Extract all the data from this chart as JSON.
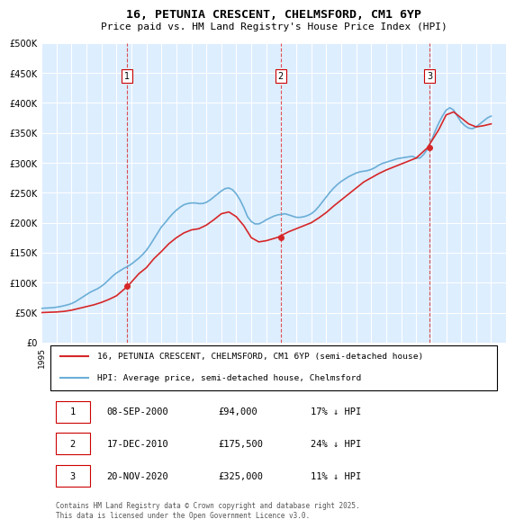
{
  "title": "16, PETUNIA CRESCENT, CHELMSFORD, CM1 6YP",
  "subtitle": "Price paid vs. HM Land Registry's House Price Index (HPI)",
  "ylim": [
    0,
    500000
  ],
  "yticks": [
    0,
    50000,
    100000,
    150000,
    200000,
    250000,
    300000,
    350000,
    400000,
    450000,
    500000
  ],
  "ylabel_format": "£{0}K",
  "xlim_start": 1995,
  "xlim_end": 2026,
  "hpi_color": "#6baed6",
  "price_color": "#d62728",
  "vline_color": "#d62728",
  "background_color": "#ddeeff",
  "sale_dates": [
    "2000-09-08",
    "2010-12-17",
    "2020-11-20"
  ],
  "sale_prices": [
    94000,
    175500,
    325000
  ],
  "sale_labels": [
    "1",
    "2",
    "3"
  ],
  "legend_entries": [
    "16, PETUNIA CRESCENT, CHELMSFORD, CM1 6YP (semi-detached house)",
    "HPI: Average price, semi-detached house, Chelmsford"
  ],
  "table_rows": [
    [
      "1",
      "08-SEP-2000",
      "£94,000",
      "17% ↓ HPI"
    ],
    [
      "2",
      "17-DEC-2010",
      "£175,500",
      "24% ↓ HPI"
    ],
    [
      "3",
      "20-NOV-2020",
      "£325,000",
      "11% ↓ HPI"
    ]
  ],
  "footnote": "Contains HM Land Registry data © Crown copyright and database right 2025.\nThis data is licensed under the Open Government Licence v3.0.",
  "hpi_data_x": [
    1995.0,
    1995.25,
    1995.5,
    1995.75,
    1996.0,
    1996.25,
    1996.5,
    1996.75,
    1997.0,
    1997.25,
    1997.5,
    1997.75,
    1998.0,
    1998.25,
    1998.5,
    1998.75,
    1999.0,
    1999.25,
    1999.5,
    1999.75,
    2000.0,
    2000.25,
    2000.5,
    2000.75,
    2001.0,
    2001.25,
    2001.5,
    2001.75,
    2002.0,
    2002.25,
    2002.5,
    2002.75,
    2003.0,
    2003.25,
    2003.5,
    2003.75,
    2004.0,
    2004.25,
    2004.5,
    2004.75,
    2005.0,
    2005.25,
    2005.5,
    2005.75,
    2006.0,
    2006.25,
    2006.5,
    2006.75,
    2007.0,
    2007.25,
    2007.5,
    2007.75,
    2008.0,
    2008.25,
    2008.5,
    2008.75,
    2009.0,
    2009.25,
    2009.5,
    2009.75,
    2010.0,
    2010.25,
    2010.5,
    2010.75,
    2011.0,
    2011.25,
    2011.5,
    2011.75,
    2012.0,
    2012.25,
    2012.5,
    2012.75,
    2013.0,
    2013.25,
    2013.5,
    2013.75,
    2014.0,
    2014.25,
    2014.5,
    2014.75,
    2015.0,
    2015.25,
    2015.5,
    2015.75,
    2016.0,
    2016.25,
    2016.5,
    2016.75,
    2017.0,
    2017.25,
    2017.5,
    2017.75,
    2018.0,
    2018.25,
    2018.5,
    2018.75,
    2019.0,
    2019.25,
    2019.5,
    2019.75,
    2020.0,
    2020.25,
    2020.5,
    2020.75,
    2021.0,
    2021.25,
    2021.5,
    2021.75,
    2022.0,
    2022.25,
    2022.5,
    2022.75,
    2023.0,
    2023.25,
    2023.5,
    2023.75,
    2024.0,
    2024.25,
    2024.5,
    2024.75,
    2025.0
  ],
  "hpi_data_y": [
    57000,
    57500,
    57800,
    58200,
    59000,
    60000,
    61500,
    63000,
    65000,
    68000,
    72000,
    76000,
    80000,
    84000,
    87000,
    90000,
    94000,
    99000,
    105000,
    111000,
    116000,
    120000,
    124000,
    127000,
    131000,
    136000,
    141000,
    147000,
    154000,
    163000,
    173000,
    183000,
    193000,
    200000,
    208000,
    215000,
    221000,
    226000,
    230000,
    232000,
    233000,
    233000,
    232000,
    232000,
    234000,
    238000,
    243000,
    248000,
    253000,
    257000,
    258000,
    255000,
    248000,
    238000,
    225000,
    210000,
    202000,
    198000,
    198000,
    201000,
    205000,
    208000,
    211000,
    213000,
    214000,
    215000,
    213000,
    211000,
    209000,
    209000,
    210000,
    212000,
    215000,
    220000,
    227000,
    235000,
    243000,
    251000,
    258000,
    264000,
    269000,
    273000,
    277000,
    280000,
    283000,
    285000,
    286000,
    287000,
    289000,
    292000,
    296000,
    299000,
    301000,
    303000,
    305000,
    307000,
    308000,
    309000,
    310000,
    311000,
    308000,
    308000,
    314000,
    323000,
    336000,
    352000,
    366000,
    378000,
    388000,
    392000,
    388000,
    378000,
    368000,
    362000,
    358000,
    357000,
    360000,
    365000,
    370000,
    375000,
    378000
  ],
  "price_data_x": [
    1995.0,
    1995.5,
    1996.0,
    1996.5,
    1997.0,
    1997.5,
    1998.0,
    1998.5,
    1999.0,
    1999.5,
    2000.0,
    2000.75,
    2001.5,
    2002.0,
    2002.5,
    2003.0,
    2003.5,
    2004.0,
    2004.5,
    2005.0,
    2005.5,
    2006.0,
    2006.5,
    2007.0,
    2007.5,
    2008.0,
    2008.5,
    2009.0,
    2009.5,
    2010.0,
    2010.75,
    2011.5,
    2012.0,
    2012.5,
    2013.0,
    2013.5,
    2014.0,
    2014.5,
    2015.0,
    2015.5,
    2016.0,
    2016.5,
    2017.0,
    2017.5,
    2018.0,
    2018.5,
    2019.0,
    2019.5,
    2020.0,
    2020.75,
    2021.5,
    2022.0,
    2022.5,
    2023.0,
    2023.5,
    2024.0,
    2024.5,
    2025.0
  ],
  "price_data_y": [
    50000,
    50500,
    51000,
    52000,
    54000,
    57000,
    60000,
    63000,
    67000,
    72000,
    78000,
    94000,
    115000,
    125000,
    140000,
    152000,
    165000,
    175000,
    183000,
    188000,
    190000,
    196000,
    205000,
    215000,
    218000,
    210000,
    195000,
    175000,
    168000,
    170000,
    175500,
    185000,
    190000,
    195000,
    200000,
    208000,
    217000,
    228000,
    238000,
    248000,
    258000,
    268000,
    275000,
    282000,
    288000,
    293000,
    298000,
    303000,
    308000,
    325000,
    355000,
    380000,
    385000,
    375000,
    365000,
    360000,
    362000,
    365000
  ]
}
